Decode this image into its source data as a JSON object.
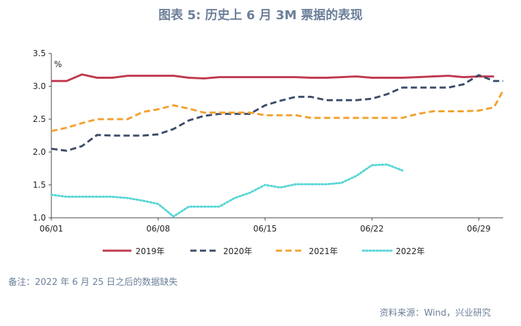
{
  "title": "图表 5:  历史上 6 月 3M 票据的表现",
  "note": "备注：2022 年 6 月 25 日之后的数据缺失",
  "source": "资料来源：Wind，兴业研究",
  "chart_data": {
    "type": "line",
    "ylabel": "%",
    "ylim": [
      1.0,
      3.5
    ],
    "yticks": [
      "1.0",
      "1.5",
      "2.0",
      "2.5",
      "3.0",
      "3.5"
    ],
    "x": [
      1,
      2,
      3,
      4,
      5,
      6,
      7,
      8,
      9,
      10,
      11,
      12,
      13,
      14,
      15,
      16,
      17,
      18,
      19,
      20,
      21,
      22,
      23,
      24,
      25,
      26,
      27,
      28,
      29,
      30
    ],
    "xtick_labels": [
      {
        "x": 1,
        "label": "06/01"
      },
      {
        "x": 8,
        "label": "06/08"
      },
      {
        "x": 15,
        "label": "06/15"
      },
      {
        "x": 22,
        "label": "06/22"
      },
      {
        "x": 29,
        "label": "06/29"
      }
    ],
    "grid": false,
    "legend_position": "bottom",
    "series": [
      {
        "name": "2019年",
        "color": "#c0394f",
        "style": "solid",
        "values": [
          3.08,
          3.08,
          3.18,
          3.13,
          3.13,
          3.16,
          3.16,
          3.16,
          3.16,
          3.13,
          3.12,
          3.14,
          3.14,
          3.14,
          3.14,
          3.14,
          3.14,
          3.13,
          3.13,
          3.14,
          3.15,
          3.13,
          3.13,
          3.13,
          3.14,
          3.15,
          3.16,
          3.14,
          3.15,
          3.15
        ]
      },
      {
        "name": "2020年",
        "color": "#3c4c6a",
        "style": "dashed",
        "values": [
          2.05,
          2.02,
          2.09,
          2.26,
          2.25,
          2.25,
          2.25,
          2.27,
          2.35,
          2.48,
          2.55,
          2.58,
          2.58,
          2.58,
          2.71,
          2.78,
          2.84,
          2.84,
          2.79,
          2.79,
          2.79,
          2.81,
          2.88,
          2.98,
          2.98,
          2.98,
          2.98,
          3.03,
          3.17,
          3.08
        ]
      },
      {
        "name": "2021年",
        "color": "#f2a12f",
        "style": "dashed",
        "values": [
          2.32,
          2.37,
          2.44,
          2.5,
          2.5,
          2.5,
          2.61,
          2.65,
          2.71,
          2.66,
          2.6,
          2.6,
          2.6,
          2.6,
          2.56,
          2.56,
          2.56,
          2.52,
          2.52,
          2.52,
          2.52,
          2.52,
          2.52,
          2.52,
          2.58,
          2.62,
          2.62,
          2.62,
          2.63,
          2.68
        ]
      },
      {
        "name": "2022年",
        "color": "#55d5d5",
        "style": "dotted",
        "values": [
          1.35,
          1.32,
          1.32,
          1.32,
          1.32,
          1.3,
          1.26,
          1.21,
          1.02,
          1.17,
          1.17,
          1.17,
          1.3,
          1.38,
          1.5,
          1.46,
          1.51,
          1.51,
          1.51,
          1.53,
          1.64,
          1.8,
          1.81,
          1.72,
          null,
          null,
          null,
          null,
          null,
          null
        ]
      }
    ],
    "trailing_points": {
      "2021年": {
        "x": 30.6,
        "y": 2.94
      },
      "2020年": {
        "x": 30.6,
        "y": 3.08
      }
    }
  }
}
